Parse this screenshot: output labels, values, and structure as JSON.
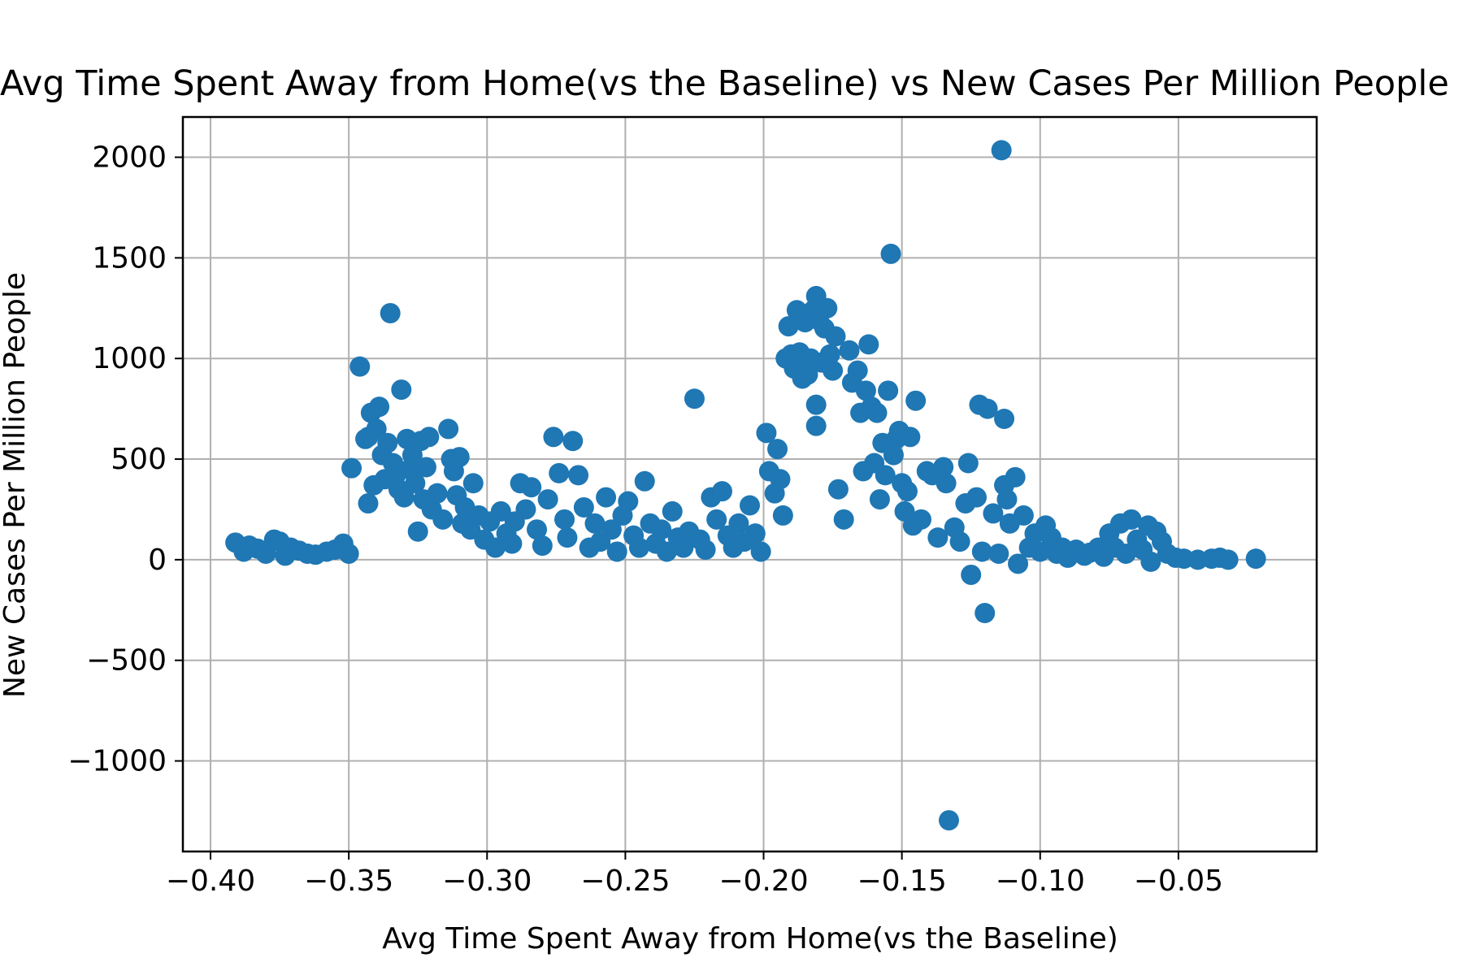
{
  "chart_data": {
    "type": "scatter",
    "title": "Avg Time Spent Away from Home(vs the Baseline) vs New Cases Per Million People",
    "xlabel": "Avg Time Spent Away from Home(vs the Baseline)",
    "ylabel": "New Cases Per Million People",
    "xlim": [
      -0.41,
      0.0
    ],
    "ylim": [
      -1450,
      2200
    ],
    "xticks": [
      -0.4,
      -0.35,
      -0.3,
      -0.25,
      -0.2,
      -0.15,
      -0.1,
      -0.05
    ],
    "xtick_labels": [
      "−0.40",
      "−0.35",
      "−0.30",
      "−0.25",
      "−0.20",
      "−0.15",
      "−0.10",
      "−0.05"
    ],
    "yticks": [
      -1000,
      -500,
      0,
      500,
      1000,
      1500,
      2000
    ],
    "ytick_labels": [
      "−1000",
      "−500",
      "0",
      "500",
      "1000",
      "1500",
      "2000"
    ],
    "grid": true,
    "marker_color": "#1f77b4",
    "points": [
      [
        -0.391,
        85
      ],
      [
        -0.388,
        40
      ],
      [
        -0.386,
        70
      ],
      [
        -0.383,
        55
      ],
      [
        -0.38,
        30
      ],
      [
        -0.377,
        100
      ],
      [
        -0.375,
        90
      ],
      [
        -0.373,
        20
      ],
      [
        -0.371,
        60
      ],
      [
        -0.368,
        45
      ],
      [
        -0.365,
        30
      ],
      [
        -0.362,
        25
      ],
      [
        -0.358,
        40
      ],
      [
        -0.355,
        50
      ],
      [
        -0.352,
        80
      ],
      [
        -0.35,
        30
      ],
      [
        -0.349,
        455
      ],
      [
        -0.346,
        960
      ],
      [
        -0.344,
        600
      ],
      [
        -0.343,
        610
      ],
      [
        -0.343,
        280
      ],
      [
        -0.342,
        730
      ],
      [
        -0.341,
        370
      ],
      [
        -0.34,
        650
      ],
      [
        -0.339,
        760
      ],
      [
        -0.338,
        520
      ],
      [
        -0.337,
        400
      ],
      [
        -0.336,
        580
      ],
      [
        -0.335,
        1225
      ],
      [
        -0.334,
        480
      ],
      [
        -0.333,
        420
      ],
      [
        -0.332,
        350
      ],
      [
        -0.331,
        845
      ],
      [
        -0.33,
        310
      ],
      [
        -0.329,
        600
      ],
      [
        -0.328,
        450
      ],
      [
        -0.327,
        520
      ],
      [
        -0.326,
        380
      ],
      [
        -0.325,
        140
      ],
      [
        -0.324,
        590
      ],
      [
        -0.323,
        300
      ],
      [
        -0.322,
        460
      ],
      [
        -0.321,
        610
      ],
      [
        -0.32,
        250
      ],
      [
        -0.318,
        330
      ],
      [
        -0.316,
        200
      ],
      [
        -0.314,
        650
      ],
      [
        -0.313,
        500
      ],
      [
        -0.312,
        440
      ],
      [
        -0.311,
        320
      ],
      [
        -0.31,
        510
      ],
      [
        -0.309,
        180
      ],
      [
        -0.308,
        260
      ],
      [
        -0.306,
        150
      ],
      [
        -0.305,
        380
      ],
      [
        -0.303,
        220
      ],
      [
        -0.301,
        100
      ],
      [
        -0.299,
        190
      ],
      [
        -0.297,
        60
      ],
      [
        -0.295,
        240
      ],
      [
        -0.293,
        130
      ],
      [
        -0.291,
        80
      ],
      [
        -0.29,
        190
      ],
      [
        -0.288,
        380
      ],
      [
        -0.286,
        250
      ],
      [
        -0.284,
        360
      ],
      [
        -0.282,
        150
      ],
      [
        -0.28,
        70
      ],
      [
        -0.278,
        300
      ],
      [
        -0.276,
        610
      ],
      [
        -0.274,
        430
      ],
      [
        -0.272,
        200
      ],
      [
        -0.271,
        110
      ],
      [
        -0.269,
        590
      ],
      [
        -0.267,
        420
      ],
      [
        -0.265,
        260
      ],
      [
        -0.263,
        60
      ],
      [
        -0.261,
        180
      ],
      [
        -0.259,
        90
      ],
      [
        -0.257,
        310
      ],
      [
        -0.255,
        150
      ],
      [
        -0.253,
        40
      ],
      [
        -0.251,
        220
      ],
      [
        -0.249,
        290
      ],
      [
        -0.247,
        120
      ],
      [
        -0.245,
        60
      ],
      [
        -0.243,
        390
      ],
      [
        -0.241,
        180
      ],
      [
        -0.239,
        80
      ],
      [
        -0.237,
        150
      ],
      [
        -0.235,
        40
      ],
      [
        -0.233,
        240
      ],
      [
        -0.231,
        110
      ],
      [
        -0.229,
        60
      ],
      [
        -0.227,
        140
      ],
      [
        -0.225,
        800
      ],
      [
        -0.223,
        100
      ],
      [
        -0.221,
        50
      ],
      [
        -0.219,
        310
      ],
      [
        -0.217,
        200
      ],
      [
        -0.215,
        340
      ],
      [
        -0.213,
        120
      ],
      [
        -0.211,
        60
      ],
      [
        -0.209,
        180
      ],
      [
        -0.207,
        90
      ],
      [
        -0.205,
        270
      ],
      [
        -0.203,
        130
      ],
      [
        -0.201,
        40
      ],
      [
        -0.199,
        630
      ],
      [
        -0.198,
        440
      ],
      [
        -0.196,
        330
      ],
      [
        -0.195,
        550
      ],
      [
        -0.194,
        400
      ],
      [
        -0.193,
        220
      ],
      [
        -0.192,
        1000
      ],
      [
        -0.191,
        1160
      ],
      [
        -0.19,
        1020
      ],
      [
        -0.189,
        950
      ],
      [
        -0.188,
        1240
      ],
      [
        -0.187,
        1030
      ],
      [
        -0.186,
        900
      ],
      [
        -0.185,
        1180
      ],
      [
        -0.184,
        920
      ],
      [
        -0.183,
        1000
      ],
      [
        -0.182,
        1240
      ],
      [
        -0.181,
        1310
      ],
      [
        -0.181,
        770
      ],
      [
        -0.181,
        665
      ],
      [
        -0.18,
        1190
      ],
      [
        -0.179,
        980
      ],
      [
        -0.178,
        1150
      ],
      [
        -0.177,
        1250
      ],
      [
        -0.176,
        1020
      ],
      [
        -0.175,
        940
      ],
      [
        -0.174,
        1110
      ],
      [
        -0.173,
        350
      ],
      [
        -0.171,
        200
      ],
      [
        -0.169,
        1040
      ],
      [
        -0.168,
        880
      ],
      [
        -0.166,
        940
      ],
      [
        -0.165,
        730
      ],
      [
        -0.164,
        440
      ],
      [
        -0.163,
        840
      ],
      [
        -0.162,
        1070
      ],
      [
        -0.161,
        760
      ],
      [
        -0.16,
        480
      ],
      [
        -0.159,
        730
      ],
      [
        -0.158,
        300
      ],
      [
        -0.157,
        580
      ],
      [
        -0.156,
        420
      ],
      [
        -0.155,
        840
      ],
      [
        -0.154,
        1520
      ],
      [
        -0.153,
        520
      ],
      [
        -0.152,
        600
      ],
      [
        -0.151,
        640
      ],
      [
        -0.15,
        380
      ],
      [
        -0.149,
        240
      ],
      [
        -0.148,
        340
      ],
      [
        -0.147,
        610
      ],
      [
        -0.146,
        170
      ],
      [
        -0.145,
        790
      ],
      [
        -0.143,
        200
      ],
      [
        -0.141,
        440
      ],
      [
        -0.139,
        420
      ],
      [
        -0.137,
        110
      ],
      [
        -0.135,
        460
      ],
      [
        -0.134,
        380
      ],
      [
        -0.133,
        -1295
      ],
      [
        -0.131,
        160
      ],
      [
        -0.129,
        90
      ],
      [
        -0.127,
        280
      ],
      [
        -0.126,
        480
      ],
      [
        -0.125,
        -75
      ],
      [
        -0.123,
        310
      ],
      [
        -0.122,
        770
      ],
      [
        -0.121,
        40
      ],
      [
        -0.12,
        -265
      ],
      [
        -0.119,
        750
      ],
      [
        -0.117,
        230
      ],
      [
        -0.115,
        30
      ],
      [
        -0.114,
        2035
      ],
      [
        -0.113,
        370
      ],
      [
        -0.113,
        700
      ],
      [
        -0.112,
        300
      ],
      [
        -0.111,
        180
      ],
      [
        -0.109,
        410
      ],
      [
        -0.108,
        -20
      ],
      [
        -0.106,
        220
      ],
      [
        -0.104,
        60
      ],
      [
        -0.102,
        130
      ],
      [
        -0.1,
        40
      ],
      [
        -0.098,
        170
      ],
      [
        -0.096,
        110
      ],
      [
        -0.094,
        30
      ],
      [
        -0.092,
        60
      ],
      [
        -0.09,
        10
      ],
      [
        -0.087,
        50
      ],
      [
        -0.084,
        20
      ],
      [
        -0.082,
        35
      ],
      [
        -0.079,
        60
      ],
      [
        -0.077,
        15
      ],
      [
        -0.075,
        130
      ],
      [
        -0.073,
        60
      ],
      [
        -0.071,
        180
      ],
      [
        -0.069,
        30
      ],
      [
        -0.067,
        200
      ],
      [
        -0.065,
        100
      ],
      [
        -0.063,
        50
      ],
      [
        -0.061,
        170
      ],
      [
        -0.06,
        -10
      ],
      [
        -0.058,
        140
      ],
      [
        -0.056,
        90
      ],
      [
        -0.054,
        30
      ],
      [
        -0.051,
        10
      ],
      [
        -0.048,
        5
      ],
      [
        -0.043,
        0
      ],
      [
        -0.038,
        5
      ],
      [
        -0.035,
        10
      ],
      [
        -0.032,
        0
      ],
      [
        -0.022,
        5
      ]
    ]
  }
}
